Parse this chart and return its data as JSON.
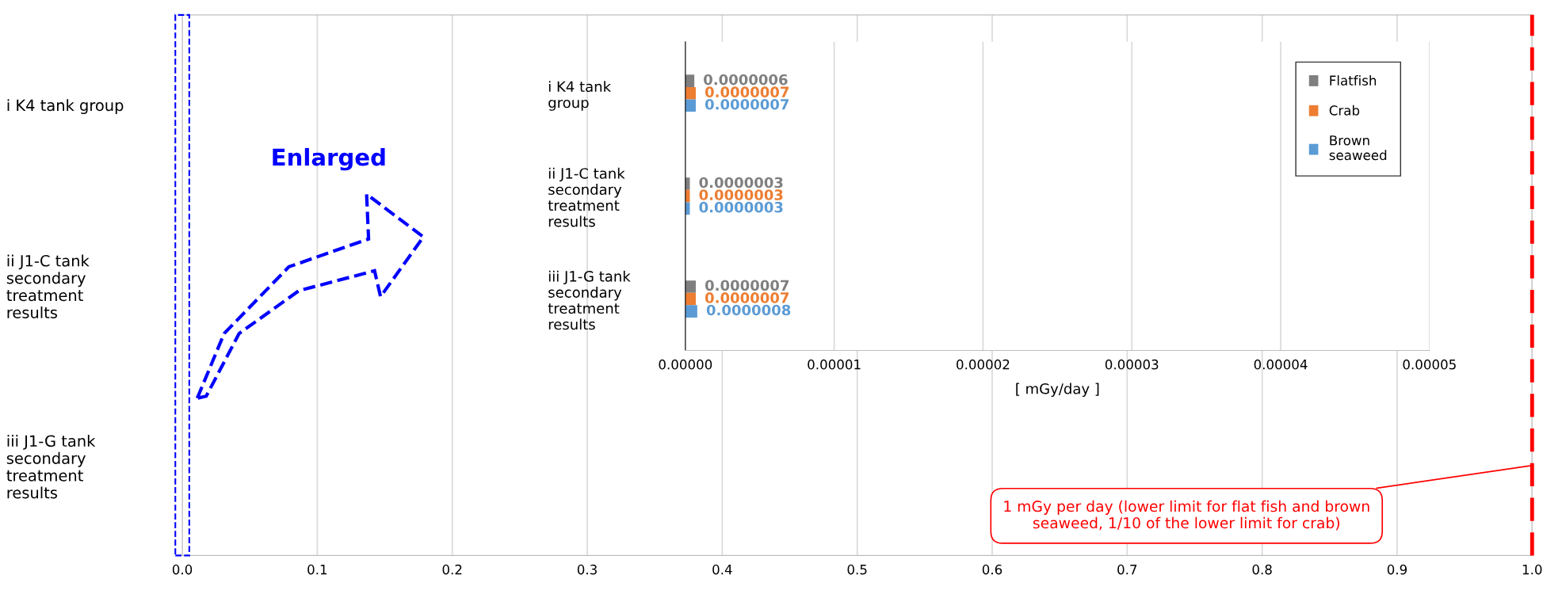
{
  "chart_data": [
    {
      "type": "bar",
      "orientation": "horizontal",
      "categories": [
        "i K4 tank group",
        "ii J1-C tank\nsecondary\ntreatment\nresults",
        "iii J1-G tank\nsecondary\ntreatment\nresults"
      ],
      "xlim": [
        0,
        1
      ],
      "xticks": [
        {
          "value": 0,
          "label": "0.0"
        },
        0.1,
        0.2,
        0.3,
        0.4,
        0.5,
        0.6,
        0.7,
        0.8,
        0.9,
        {
          "value": 1,
          "label": "1.0"
        }
      ],
      "grid": "x",
      "ref_lines": [
        {
          "axis": "x",
          "value": 1,
          "label": "1 mGy per day (lower limit for flat fish and brown\nseaweed, 1/10 of the lower limit for crab)",
          "color": "#ff0000",
          "line_style": "dashed"
        }
      ],
      "annotations": [
        "Enlarged"
      ]
    },
    {
      "type": "bar",
      "orientation": "horizontal",
      "categories": [
        "i K4 tank\ngroup",
        "ii J1-C tank\nsecondary\ntreatment\nresults",
        "iii J1-G tank\nsecondary\ntreatment\nresults"
      ],
      "series": [
        {
          "name": "Flatfish",
          "color": "#7f7f7f",
          "values": [
            6e-07,
            3e-07,
            7e-07
          ],
          "value_labels": [
            "0.0000006",
            "0.0000003",
            "0.0000007"
          ]
        },
        {
          "name": "Crab",
          "color": "#ed7d31",
          "values": [
            7e-07,
            3e-07,
            7e-07
          ],
          "value_labels": [
            "0.0000007",
            "0.0000003",
            "0.0000007"
          ]
        },
        {
          "name": "Brown\nseaweed",
          "color": "#5b9bd5",
          "values": [
            7e-07,
            3e-07,
            8e-07
          ],
          "value_labels": [
            "0.0000007",
            "0.0000003",
            "0.0000008"
          ]
        }
      ],
      "xlim": [
        0,
        5e-05
      ],
      "xticks": [
        {
          "value": 0,
          "label": "0.00000"
        },
        {
          "value": 1e-05,
          "label": "0.00001"
        },
        {
          "value": 2e-05,
          "label": "0.00002"
        },
        {
          "value": 3e-05,
          "label": "0.00003"
        },
        {
          "value": 4e-05,
          "label": "0.00004"
        },
        {
          "value": 5e-05,
          "label": "0.00005"
        }
      ],
      "xlabel": "[ mGy/day ]",
      "grid": "x",
      "legend": "right"
    }
  ]
}
